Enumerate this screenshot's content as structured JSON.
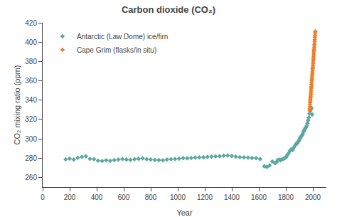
{
  "chart_data": {
    "type": "scatter",
    "title": "Carbon dioxide (CO₂)",
    "xlabel": "Year",
    "ylabel": "CO₂ mixing ratio (ppm)",
    "xlim": [
      0,
      2100
    ],
    "ylim": [
      250,
      420
    ],
    "xticks": [
      0,
      200,
      400,
      600,
      800,
      1000,
      1200,
      1400,
      1600,
      1800,
      2000
    ],
    "yticks": [
      260,
      280,
      300,
      320,
      340,
      360,
      380,
      400,
      420
    ],
    "grid": false,
    "legend": "upper left",
    "series": [
      {
        "name": "Antarctic (Law Dome) ice/firn",
        "color": "#5ba8a0",
        "marker": "diamond",
        "x": [
          170,
          200,
          230,
          260,
          290,
          320,
          350,
          380,
          410,
          440,
          470,
          500,
          530,
          560,
          590,
          620,
          650,
          680,
          710,
          740,
          770,
          800,
          830,
          860,
          890,
          920,
          950,
          980,
          1010,
          1040,
          1070,
          1100,
          1130,
          1160,
          1190,
          1220,
          1250,
          1280,
          1310,
          1340,
          1370,
          1400,
          1430,
          1460,
          1490,
          1520,
          1550,
          1580,
          1610,
          1640,
          1660,
          1680,
          1700,
          1720,
          1730,
          1740,
          1750,
          1760,
          1770,
          1780,
          1790,
          1800,
          1810,
          1820,
          1830,
          1840,
          1850,
          1860,
          1870,
          1880,
          1885,
          1890,
          1895,
          1900,
          1905,
          1910,
          1915,
          1920,
          1925,
          1930,
          1935,
          1940,
          1945,
          1950,
          1955,
          1960,
          1965,
          1970,
          1975,
          1980,
          1985,
          1990,
          1995
        ],
        "values": [
          278.7,
          279.5,
          278.5,
          280.4,
          281.2,
          281.8,
          279.3,
          278.8,
          277.5,
          277.0,
          277.8,
          277.2,
          278.0,
          278.5,
          279.0,
          278.5,
          278.2,
          278.8,
          279.3,
          279.8,
          278.8,
          278.5,
          278.2,
          278.0,
          277.8,
          278.5,
          278.8,
          279.0,
          279.5,
          280.0,
          279.8,
          280.2,
          280.5,
          280.8,
          281.0,
          281.2,
          281.5,
          281.8,
          282.0,
          282.5,
          282.8,
          282.2,
          281.5,
          281.0,
          280.8,
          280.5,
          280.2,
          280.0,
          279.0,
          271.5,
          270.8,
          272.5,
          276.5,
          274.8,
          275.5,
          278.0,
          278.5,
          277.8,
          278.5,
          279.0,
          280.0,
          280.5,
          283.0,
          285.0,
          287.5,
          289.0,
          288.5,
          291.0,
          293.5,
          295.5,
          295.5,
          296.8,
          297.5,
          298.8,
          300.5,
          302.0,
          302.5,
          303.5,
          305.0,
          307.0,
          308.5,
          310.0,
          311.0,
          312.0,
          313.5,
          316.0,
          319.0,
          322.0,
          326.0,
          328.5,
          330.0,
          332.0,
          325.0
        ]
      },
      {
        "name": "Cape Grim (flasks/in situ)",
        "color": "#f07f27",
        "marker": "diamond",
        "x": [
          1976,
          1977,
          1978,
          1979,
          1980,
          1981,
          1982,
          1983,
          1984,
          1985,
          1986,
          1987,
          1988,
          1989,
          1990,
          1991,
          1992,
          1993,
          1994,
          1995,
          1996,
          1997,
          1998,
          1999,
          2000,
          2001,
          2002,
          2003,
          2004,
          2005,
          2006,
          2007,
          2008,
          2009,
          2010,
          2011,
          2012,
          2013,
          2014,
          2015,
          2016,
          2017,
          2018
        ],
        "values": [
          329.0,
          331.0,
          333.0,
          335.5,
          337.5,
          339.5,
          341.0,
          342.5,
          344.0,
          346.0,
          348.0,
          350.0,
          352.5,
          354.0,
          356.0,
          358.0,
          360.0,
          361.5,
          363.0,
          365.0,
          367.0,
          369.0,
          371.0,
          372.5,
          374.0,
          376.0,
          378.0,
          380.5,
          382.5,
          384.5,
          386.5,
          388.5,
          390.5,
          392.0,
          394.0,
          396.0,
          398.0,
          400.5,
          402.5,
          405.0,
          407.0,
          409.5,
          411.0
        ]
      }
    ]
  }
}
